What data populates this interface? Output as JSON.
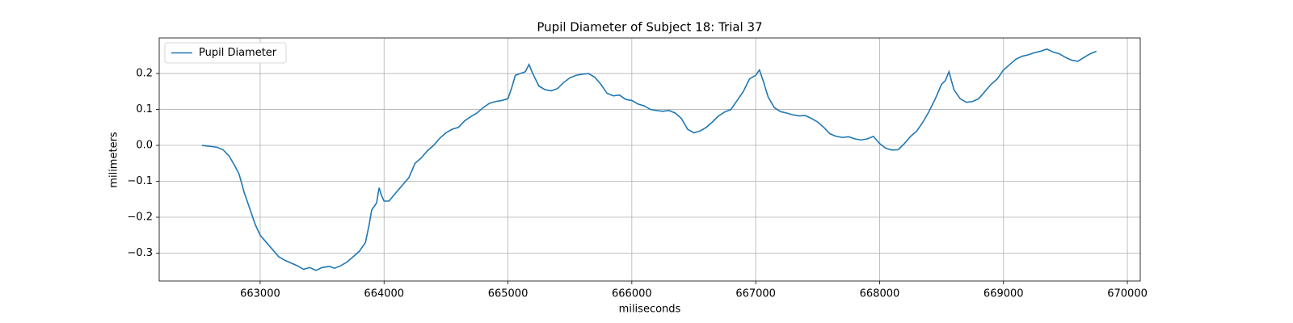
{
  "chart_data": {
    "type": "line",
    "title": "Pupil Diameter of Subject 18: Trial 37",
    "x_label": "miliseconds",
    "y_label": "milimeters",
    "x": [
      662530,
      662600,
      662650,
      662700,
      662750,
      662800,
      662830,
      662870,
      662920,
      662960,
      663000,
      663050,
      663100,
      663150,
      663200,
      663300,
      663350,
      663400,
      663450,
      663500,
      663560,
      663600,
      663650,
      663700,
      663750,
      663800,
      663850,
      663880,
      663900,
      663920,
      663940,
      663960,
      663980,
      664000,
      664040,
      664100,
      664150,
      664200,
      664250,
      664300,
      664350,
      664400,
      664450,
      664500,
      664550,
      664600,
      664650,
      664700,
      664750,
      664800,
      664850,
      664900,
      664950,
      665000,
      665030,
      665060,
      665100,
      665140,
      665170,
      665200,
      665250,
      665300,
      665350,
      665400,
      665450,
      665500,
      665550,
      665600,
      665650,
      665700,
      665750,
      665800,
      665850,
      665900,
      665950,
      666000,
      666050,
      666100,
      666150,
      666200,
      666250,
      666300,
      666350,
      666400,
      666450,
      666500,
      666550,
      666600,
      666650,
      666700,
      666750,
      666800,
      666850,
      666900,
      666950,
      667000,
      667030,
      667060,
      667100,
      667150,
      667200,
      667250,
      667300,
      667350,
      667400,
      667450,
      667500,
      667550,
      667600,
      667650,
      667700,
      667750,
      667800,
      667850,
      667900,
      667950,
      668000,
      668050,
      668100,
      668150,
      668200,
      668250,
      668300,
      668350,
      668400,
      668450,
      668500,
      668530,
      668560,
      668600,
      668650,
      668700,
      668750,
      668800,
      668850,
      668900,
      668950,
      669000,
      669050,
      669100,
      669150,
      669200,
      669250,
      669300,
      669350,
      669400,
      669450,
      669500,
      669550,
      669600,
      669650,
      669700,
      669750
    ],
    "series": [
      {
        "name": "Pupil Diameter",
        "color": "#1f77b4",
        "values": [
          0.0,
          -0.003,
          -0.005,
          -0.012,
          -0.03,
          -0.06,
          -0.08,
          -0.13,
          -0.18,
          -0.22,
          -0.25,
          -0.27,
          -0.29,
          -0.31,
          -0.32,
          -0.335,
          -0.345,
          -0.34,
          -0.348,
          -0.34,
          -0.337,
          -0.342,
          -0.335,
          -0.325,
          -0.31,
          -0.295,
          -0.27,
          -0.22,
          -0.18,
          -0.17,
          -0.16,
          -0.118,
          -0.14,
          -0.155,
          -0.155,
          -0.13,
          -0.11,
          -0.09,
          -0.05,
          -0.035,
          -0.015,
          0.0,
          0.02,
          0.035,
          0.045,
          0.05,
          0.068,
          0.08,
          0.09,
          0.105,
          0.117,
          0.122,
          0.125,
          0.13,
          0.16,
          0.195,
          0.2,
          0.205,
          0.225,
          0.2,
          0.165,
          0.155,
          0.152,
          0.158,
          0.175,
          0.188,
          0.195,
          0.198,
          0.2,
          0.19,
          0.17,
          0.145,
          0.138,
          0.14,
          0.128,
          0.125,
          0.115,
          0.11,
          0.1,
          0.097,
          0.095,
          0.097,
          0.09,
          0.075,
          0.045,
          0.035,
          0.04,
          0.05,
          0.065,
          0.082,
          0.093,
          0.1,
          0.125,
          0.15,
          0.185,
          0.195,
          0.21,
          0.18,
          0.135,
          0.105,
          0.094,
          0.09,
          0.085,
          0.082,
          0.083,
          0.075,
          0.065,
          0.05,
          0.032,
          0.025,
          0.022,
          0.024,
          0.018,
          0.015,
          0.018,
          0.025,
          0.005,
          -0.008,
          -0.013,
          -0.012,
          0.005,
          0.025,
          0.04,
          0.065,
          0.095,
          0.13,
          0.17,
          0.18,
          0.205,
          0.155,
          0.13,
          0.12,
          0.122,
          0.13,
          0.15,
          0.17,
          0.185,
          0.21,
          0.225,
          0.24,
          0.248,
          0.252,
          0.258,
          0.262,
          0.268,
          0.26,
          0.255,
          0.245,
          0.237,
          0.234,
          0.245,
          0.255,
          0.262
        ]
      }
    ],
    "xlim": [
      662185,
      670104
    ],
    "ylim": [
      -0.3775,
      0.299
    ],
    "xticks": [
      663000,
      664000,
      665000,
      666000,
      667000,
      668000,
      669000,
      670000
    ],
    "yticks": [
      {
        "value": -0.3,
        "label": "−0.3"
      },
      {
        "value": -0.2,
        "label": "−0.2"
      },
      {
        "value": -0.1,
        "label": "−0.1"
      },
      {
        "value": 0,
        "label": "0.0"
      },
      0.1,
      0.2
    ],
    "grid": true,
    "legend": "upper-left"
  }
}
